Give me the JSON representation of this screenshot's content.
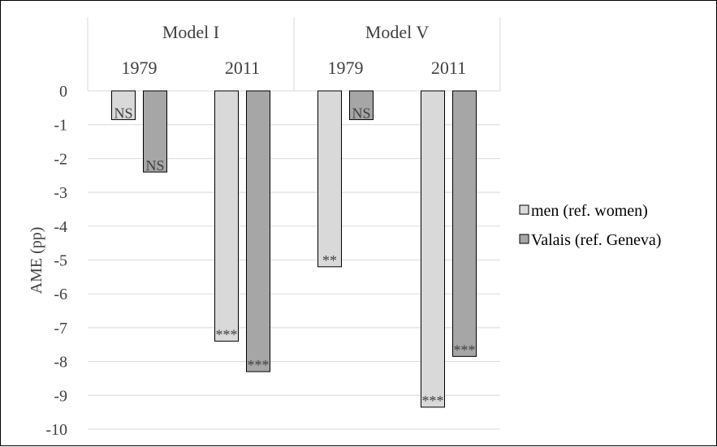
{
  "chart_data": {
    "type": "bar",
    "ylabel": "AME (pp)",
    "ylim": [
      -10,
      0
    ],
    "yticks": [
      "0",
      "-1",
      "-2",
      "-3",
      "-4",
      "-5",
      "-6",
      "-7",
      "-8",
      "-9",
      "-10"
    ],
    "groups": [
      {
        "label": "Model I",
        "categories": [
          "1979",
          "2011"
        ]
      },
      {
        "label": "Model V",
        "categories": [
          "1979",
          "2011"
        ]
      }
    ],
    "categories": [
      "1979",
      "2011",
      "1979",
      "2011"
    ],
    "series": [
      {
        "name": "men (ref. women)",
        "color": "#d9d9d9",
        "values": [
          -0.85,
          -7.4,
          -5.2,
          -9.35
        ],
        "significance": [
          "NS",
          "***",
          "**",
          "***"
        ]
      },
      {
        "name": "Valais (ref. Geneva)",
        "color": "#a6a6a6",
        "values": [
          -2.4,
          -8.3,
          -0.85,
          -7.85
        ],
        "significance": [
          "NS",
          "***",
          "NS",
          "***"
        ]
      }
    ],
    "grid": true,
    "legend": "right"
  }
}
